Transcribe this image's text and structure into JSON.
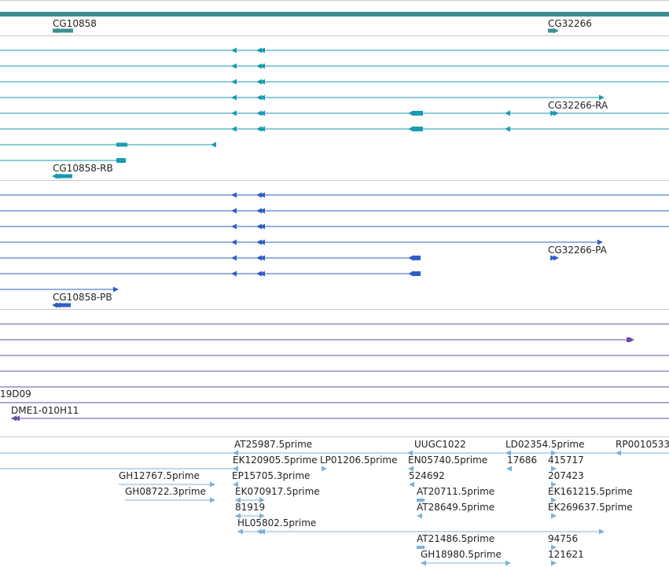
{
  "colors": {
    "background": "#ffffff",
    "divider": "#c8c8c8",
    "top_bar": "#3d8f8f",
    "gene": "#3d8f8f",
    "transcript_ra": "#1a9bb0",
    "transcript_pa": "#2f5fc4",
    "insertion": "#6a4ca8",
    "est": "#7cb1d8"
  },
  "tracks": {
    "gene": {
      "labels": [
        "CG10858",
        "CG32266"
      ],
      "icons": [
        "gene-arrow-left-icon",
        "gene-arrow-right-icon"
      ]
    },
    "transcripts_ra": {
      "labels": [
        "CG32266-RA",
        "CG10858-RB"
      ]
    },
    "transcripts_pa": {
      "labels": [
        "CG32266-PA",
        "CG10858-PB"
      ]
    },
    "insertions": {
      "labels": [
        "19D09",
        "DME1-010H11"
      ]
    },
    "est": {
      "labels": [
        "AT25987.5prime",
        "UUGC1022",
        "LD02354.5prime",
        "RP0010533",
        "EK120905.5prime",
        "LP01206.5prime",
        "EN05740.5prime",
        "17686",
        "415717",
        "GH12767.5prime",
        "EP15705.3prime",
        "524692",
        "207423",
        "GH08722.3prime",
        "EK070917.5prime",
        "AT20711.5prime",
        "EK161215.5prime",
        "81919",
        "AT28649.5prime",
        "EK269637.5prime",
        "HL05802.5prime",
        "AT21486.5prime",
        "94756",
        "GH18980.5prime",
        "121621"
      ]
    }
  }
}
